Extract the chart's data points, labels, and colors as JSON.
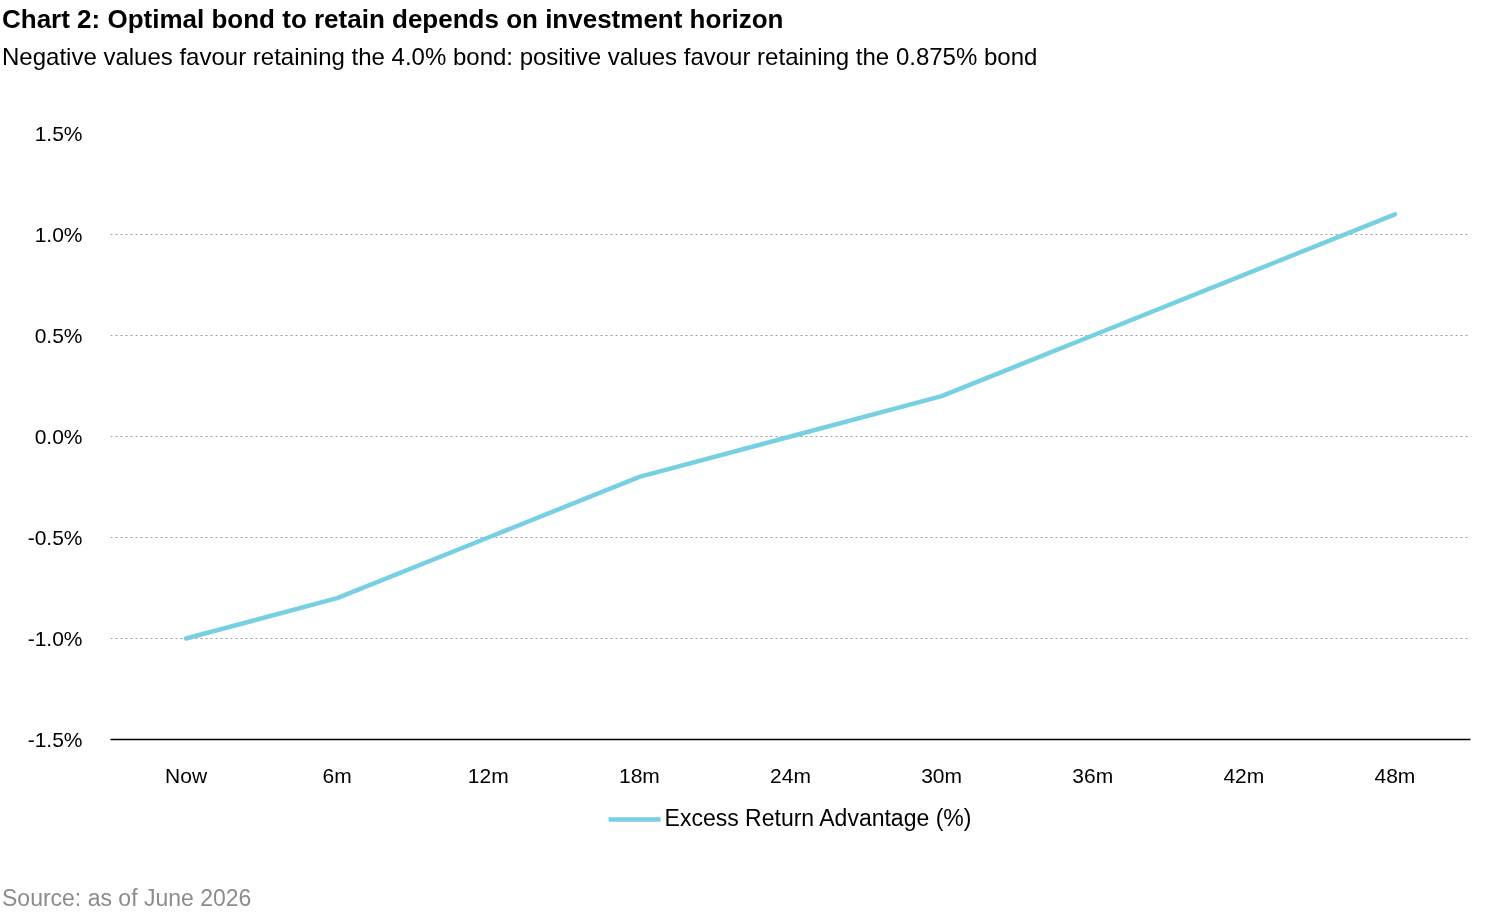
{
  "chart_data": {
    "type": "line",
    "title": "Chart 2: Optimal bond to retain depends on investment horizon",
    "subtitle": "Negative values favour retaining the 4.0% bond: positive values favour retaining the 0.875% bond",
    "categories": [
      "Now",
      "6m",
      "12m",
      "18m",
      "24m",
      "30m",
      "36m",
      "42m",
      "48m"
    ],
    "series": [
      {
        "name": "Excess Return Advantage (%)",
        "color": "#76d0e2",
        "values": [
          -1.0,
          -0.8,
          -0.5,
          -0.2,
          0.0,
          0.2,
          0.5,
          0.8,
          1.1
        ]
      }
    ],
    "ylim": [
      -1.5,
      1.5
    ],
    "yticks": [
      {
        "value": -1.5,
        "label": "-1.5%"
      },
      {
        "value": -1.0,
        "label": "-1.0%"
      },
      {
        "value": -0.5,
        "label": "-0.5%"
      },
      {
        "value": 0.0,
        "label": "0.0%"
      },
      {
        "value": 0.5,
        "label": "0.5%"
      },
      {
        "value": 1.0,
        "label": "1.0%"
      },
      {
        "value": 1.5,
        "label": "1.5%"
      }
    ],
    "grid": "y",
    "legend": "bottom",
    "annotations": [
      "Source: as of June 2026"
    ]
  }
}
